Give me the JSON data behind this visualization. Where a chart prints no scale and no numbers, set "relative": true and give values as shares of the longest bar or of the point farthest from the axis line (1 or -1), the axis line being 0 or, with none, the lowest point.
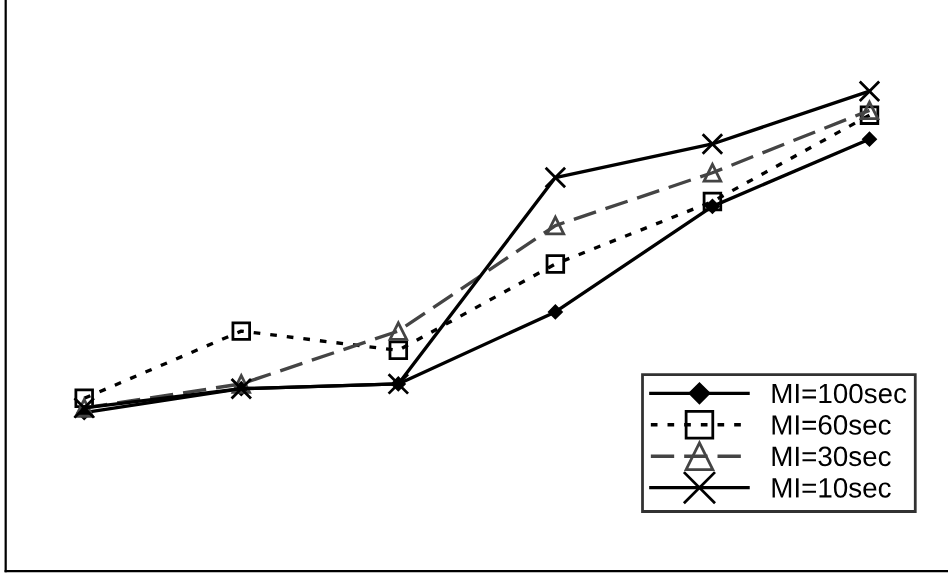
{
  "chart_data": {
    "type": "line",
    "relative": true,
    "categories": [
      null,
      null,
      null,
      null,
      null,
      null
    ],
    "legend": "bottom right",
    "grid": false,
    "series": [
      {
        "name": "MI=100sec",
        "color": "#000000",
        "marker": "diamond",
        "line_style": "solid",
        "values": [
          0.33,
          0.38,
          0.39,
          0.54,
          0.76,
          0.9
        ]
      },
      {
        "name": "MI=60sec",
        "color": "#000000",
        "marker": "square",
        "line_style": "dotted",
        "values": [
          0.36,
          0.5,
          0.46,
          0.64,
          0.77,
          0.95
        ]
      },
      {
        "name": "MI=30sec",
        "color": "#444444",
        "marker": "triangle",
        "line_style": "dashed",
        "values": [
          0.34,
          0.39,
          0.5,
          0.72,
          0.83,
          0.96
        ]
      },
      {
        "name": "MI=10sec",
        "color": "#000000",
        "marker": "cross",
        "line_style": "solid",
        "values": [
          0.34,
          0.38,
          0.39,
          0.82,
          0.89,
          1.0
        ]
      }
    ]
  }
}
